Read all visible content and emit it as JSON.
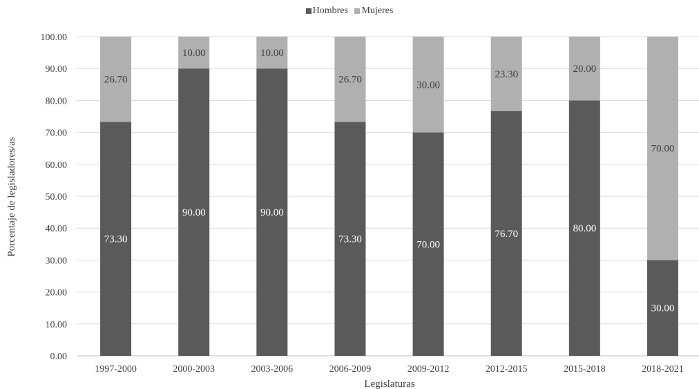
{
  "chart_data": {
    "type": "bar",
    "stacked": true,
    "categories": [
      "1997-2000",
      "2000-2003",
      "2003-2006",
      "2006-2009",
      "2009-2012",
      "2012-2015",
      "2015-2018",
      "2018-2021"
    ],
    "series": [
      {
        "name": "Hombres",
        "values": [
          73.3,
          90.0,
          90.0,
          73.3,
          70.0,
          76.7,
          80.0,
          30.0
        ],
        "color": "#5a5a5a",
        "label_color": "#ffffff"
      },
      {
        "name": "Mujeres",
        "values": [
          26.7,
          10.0,
          10.0,
          26.7,
          30.0,
          23.3,
          20.0,
          70.0
        ],
        "color": "#b0b0b0",
        "label_color": "#404040"
      }
    ],
    "xlabel": "Legislaturas",
    "ylabel": "Porcentaje de legisladores/as",
    "ylim": [
      0,
      100
    ],
    "yticks": [
      "0.00",
      "10.00",
      "20.00",
      "30.00",
      "40.00",
      "50.00",
      "60.00",
      "70.00",
      "80.00",
      "90.00",
      "100.00"
    ],
    "grid": true,
    "legend_position": "top-center"
  }
}
